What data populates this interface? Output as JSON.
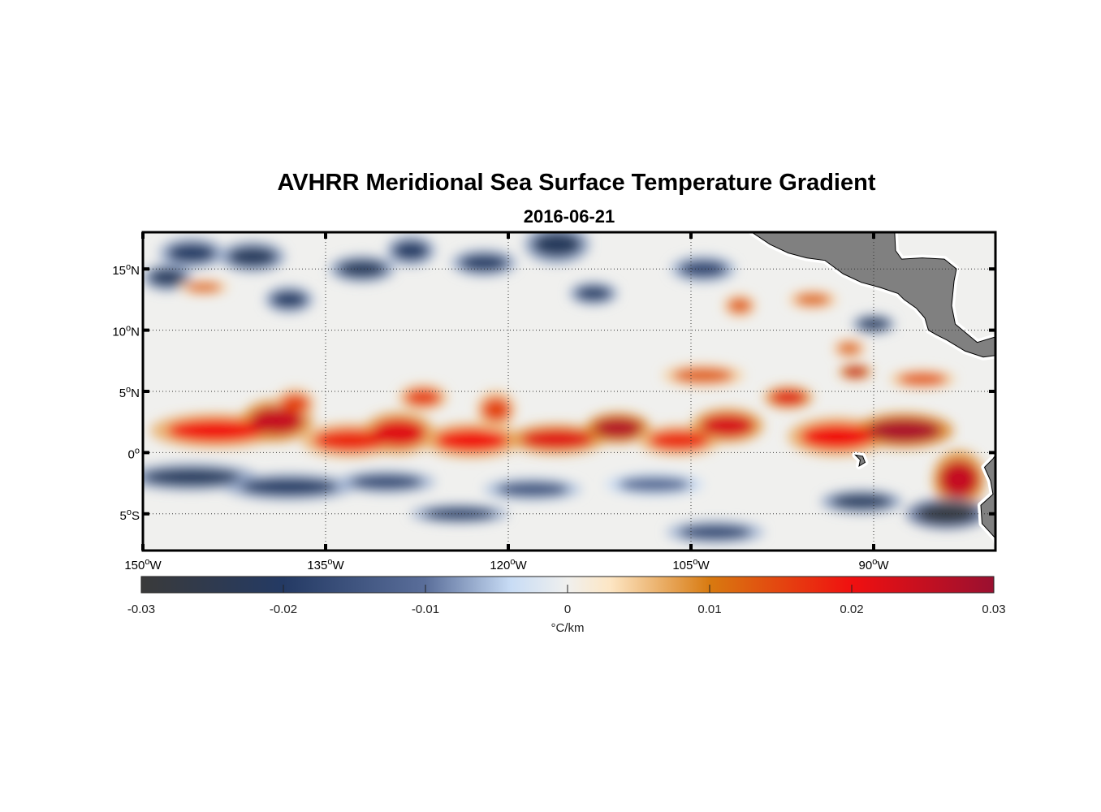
{
  "chart_data": {
    "type": "heatmap",
    "title": "AVHRR Meridional Sea Surface Temperature Gradient",
    "subtitle": "2016-06-21",
    "xlim": [
      -150,
      -80
    ],
    "ylim": [
      -8,
      18
    ],
    "x_ticks": [
      {
        "value": -150,
        "label": "150°W"
      },
      {
        "value": -135,
        "label": "135°W"
      },
      {
        "value": -120,
        "label": "120°W"
      },
      {
        "value": -105,
        "label": "105°W"
      },
      {
        "value": -90,
        "label": "90°W"
      }
    ],
    "y_ticks": [
      {
        "value": 15,
        "label": "15°N"
      },
      {
        "value": 10,
        "label": "10°N"
      },
      {
        "value": 5,
        "label": "5°N"
      },
      {
        "value": 0,
        "label": "0°"
      },
      {
        "value": -5,
        "label": "5°S"
      }
    ],
    "grid": "dotted",
    "colorbar": {
      "label": "°C/km",
      "range": [
        -0.03,
        0.03
      ],
      "ticks": [
        {
          "value": -0.03,
          "label": "-0.03"
        },
        {
          "value": -0.02,
          "label": "-0.02"
        },
        {
          "value": -0.01,
          "label": "-0.01"
        },
        {
          "value": 0,
          "label": "0"
        },
        {
          "value": 0.01,
          "label": "0.01"
        },
        {
          "value": 0.02,
          "label": "0.02"
        },
        {
          "value": 0.03,
          "label": "0.03"
        }
      ],
      "colormap": [
        {
          "value": -0.03,
          "color": "#3a3a3a"
        },
        {
          "value": -0.02,
          "color": "#243a64"
        },
        {
          "value": -0.01,
          "color": "#5a6e9a"
        },
        {
          "value": -0.004,
          "color": "#c8dcf5"
        },
        {
          "value": 0,
          "color": "#f0f0ee"
        },
        {
          "value": 0.003,
          "color": "#fde6c4"
        },
        {
          "value": 0.01,
          "color": "#d87a10"
        },
        {
          "value": 0.02,
          "color": "#f01010"
        },
        {
          "value": 0.03,
          "color": "#9a1030"
        }
      ],
      "land_color": "#808080"
    },
    "field_features": [
      {
        "lon": -144,
        "lat": 1.8,
        "dlon": 4,
        "dlat": 0.9,
        "value": 0.02
      },
      {
        "lon": -139,
        "lat": 2.6,
        "dlon": 2.2,
        "dlat": 1.1,
        "value": 0.025
      },
      {
        "lon": -137.5,
        "lat": 4,
        "dlon": 1.2,
        "dlat": 0.8,
        "value": 0.015
      },
      {
        "lon": -133,
        "lat": 1.0,
        "dlon": 3,
        "dlat": 0.9,
        "value": 0.018
      },
      {
        "lon": -129,
        "lat": 1.6,
        "dlon": 2.2,
        "dlat": 1.1,
        "value": 0.022
      },
      {
        "lon": -127,
        "lat": 4.5,
        "dlon": 1.5,
        "dlat": 0.7,
        "value": 0.016
      },
      {
        "lon": -123,
        "lat": 1.0,
        "dlon": 3,
        "dlat": 0.9,
        "value": 0.02
      },
      {
        "lon": -121,
        "lat": 3.5,
        "dlon": 1.2,
        "dlat": 1.0,
        "value": 0.015
      },
      {
        "lon": -116,
        "lat": 1.1,
        "dlon": 3,
        "dlat": 0.8,
        "value": 0.022
      },
      {
        "lon": -111,
        "lat": 2.0,
        "dlon": 2,
        "dlat": 0.8,
        "value": 0.027
      },
      {
        "lon": -106,
        "lat": 1.0,
        "dlon": 2.5,
        "dlat": 0.8,
        "value": 0.018
      },
      {
        "lon": -102,
        "lat": 2.2,
        "dlon": 2.2,
        "dlat": 0.9,
        "value": 0.023
      },
      {
        "lon": -97,
        "lat": 4.5,
        "dlon": 1.5,
        "dlat": 0.6,
        "value": 0.022
      },
      {
        "lon": -93,
        "lat": 1.3,
        "dlon": 3,
        "dlat": 1.0,
        "value": 0.02
      },
      {
        "lon": -87.5,
        "lat": 1.8,
        "dlon": 3,
        "dlat": 0.9,
        "value": 0.028
      },
      {
        "lon": -83,
        "lat": -2.2,
        "dlon": 1.6,
        "dlat": 1.5,
        "value": 0.025
      },
      {
        "lon": -146,
        "lat": -2.0,
        "dlon": 4,
        "dlat": 0.7,
        "value": -0.022
      },
      {
        "lon": -138,
        "lat": -2.8,
        "dlon": 4,
        "dlat": 0.7,
        "value": -0.02
      },
      {
        "lon": -130,
        "lat": -2.4,
        "dlon": 3,
        "dlat": 0.6,
        "value": -0.018
      },
      {
        "lon": -124,
        "lat": -5.0,
        "dlon": 3,
        "dlat": 0.5,
        "value": -0.02
      },
      {
        "lon": -118,
        "lat": -3.0,
        "dlon": 3,
        "dlat": 0.6,
        "value": -0.016
      },
      {
        "lon": -108,
        "lat": -2.6,
        "dlon": 3,
        "dlat": 0.6,
        "value": -0.012
      },
      {
        "lon": -103,
        "lat": -6.5,
        "dlon": 3,
        "dlat": 0.6,
        "value": -0.018
      },
      {
        "lon": -91,
        "lat": -4.0,
        "dlon": 2.5,
        "dlat": 0.6,
        "value": -0.022
      },
      {
        "lon": -84,
        "lat": -5.0,
        "dlon": 2.5,
        "dlat": 0.8,
        "value": -0.028
      },
      {
        "lon": -146,
        "lat": 16.3,
        "dlon": 2,
        "dlat": 0.8,
        "value": -0.02
      },
      {
        "lon": -141,
        "lat": 16.0,
        "dlon": 2,
        "dlat": 0.8,
        "value": -0.022
      },
      {
        "lon": -148,
        "lat": 14.3,
        "dlon": 1.5,
        "dlat": 0.7,
        "value": -0.022
      },
      {
        "lon": -132,
        "lat": 15.0,
        "dlon": 2,
        "dlat": 0.7,
        "value": -0.022
      },
      {
        "lon": -128,
        "lat": 16.5,
        "dlon": 1.5,
        "dlat": 0.8,
        "value": -0.02
      },
      {
        "lon": -122,
        "lat": 15.5,
        "dlon": 2,
        "dlat": 0.7,
        "value": -0.02
      },
      {
        "lon": -116,
        "lat": 17.0,
        "dlon": 2,
        "dlat": 1.0,
        "value": -0.022
      },
      {
        "lon": -138,
        "lat": 12.5,
        "dlon": 1.5,
        "dlat": 0.7,
        "value": -0.02
      },
      {
        "lon": -113,
        "lat": 13.0,
        "dlon": 1.5,
        "dlat": 0.6,
        "value": -0.02
      },
      {
        "lon": -104,
        "lat": 15.0,
        "dlon": 2,
        "dlat": 0.7,
        "value": -0.018
      },
      {
        "lon": -90,
        "lat": 10.5,
        "dlon": 1.3,
        "dlat": 0.5,
        "value": -0.022
      },
      {
        "lon": -145,
        "lat": 13.5,
        "dlon": 1.5,
        "dlat": 0.4,
        "value": 0.012
      },
      {
        "lon": -101,
        "lat": 12.0,
        "dlon": 1,
        "dlat": 0.6,
        "value": 0.013
      },
      {
        "lon": -95,
        "lat": 12.5,
        "dlon": 1.5,
        "dlat": 0.5,
        "value": 0.012
      },
      {
        "lon": -104,
        "lat": 6.3,
        "dlon": 2.5,
        "dlat": 0.6,
        "value": 0.013
      },
      {
        "lon": -91.5,
        "lat": 6.6,
        "dlon": 1,
        "dlat": 0.4,
        "value": 0.025
      },
      {
        "lon": -86,
        "lat": 6.0,
        "dlon": 2,
        "dlat": 0.5,
        "value": 0.014
      },
      {
        "lon": -92,
        "lat": 8.5,
        "dlon": 1,
        "dlat": 0.5,
        "value": 0.012
      }
    ]
  }
}
